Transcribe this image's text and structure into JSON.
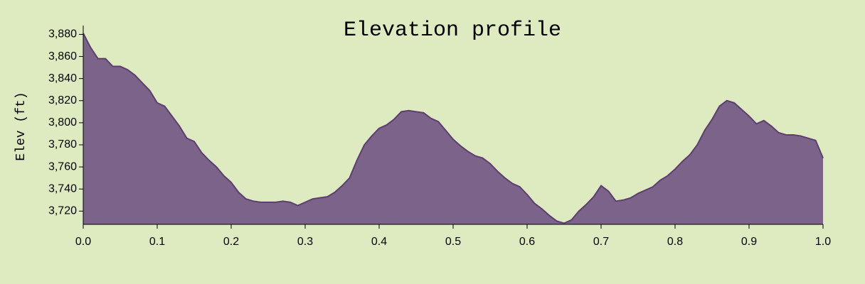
{
  "chart_data": {
    "type": "area",
    "title": "Elevation profile",
    "y_label": "Elev (ft)",
    "fill_color": "#7b6389",
    "line_color": "#5c3f70",
    "x": [
      0.0,
      0.01,
      0.02,
      0.03,
      0.04,
      0.05,
      0.06,
      0.07,
      0.08,
      0.09,
      0.1,
      0.11,
      0.12,
      0.13,
      0.14,
      0.15,
      0.16,
      0.17,
      0.18,
      0.19,
      0.2,
      0.21,
      0.22,
      0.23,
      0.24,
      0.25,
      0.26,
      0.27,
      0.28,
      0.29,
      0.3,
      0.31,
      0.32,
      0.33,
      0.34,
      0.35,
      0.36,
      0.37,
      0.38,
      0.39,
      0.4,
      0.41,
      0.42,
      0.43,
      0.44,
      0.45,
      0.46,
      0.47,
      0.48,
      0.49,
      0.5,
      0.51,
      0.52,
      0.53,
      0.54,
      0.55,
      0.56,
      0.57,
      0.58,
      0.59,
      0.6,
      0.61,
      0.62,
      0.63,
      0.64,
      0.65,
      0.66,
      0.67,
      0.68,
      0.69,
      0.7,
      0.71,
      0.72,
      0.73,
      0.74,
      0.75,
      0.76,
      0.77,
      0.78,
      0.79,
      0.8,
      0.81,
      0.82,
      0.83,
      0.84,
      0.85,
      0.86,
      0.87,
      0.88,
      0.89,
      0.9,
      0.91,
      0.92,
      0.93,
      0.94,
      0.95,
      0.96,
      0.97,
      0.98,
      0.99,
      1.0
    ],
    "values": [
      3881,
      3868,
      3858,
      3858,
      3851,
      3851,
      3848,
      3843,
      3836,
      3829,
      3818,
      3815,
      3806,
      3797,
      3786,
      3783,
      3773,
      3766,
      3760,
      3752,
      3746,
      3737,
      3731,
      3729,
      3728,
      3728,
      3728,
      3729,
      3728,
      3725,
      3728,
      3731,
      3732,
      3733,
      3737,
      3743,
      3750,
      3766,
      3780,
      3788,
      3795,
      3798,
      3803,
      3810,
      3811,
      3810,
      3809,
      3804,
      3801,
      3793,
      3785,
      3779,
      3774,
      3770,
      3768,
      3763,
      3756,
      3750,
      3745,
      3742,
      3735,
      3727,
      3722,
      3716,
      3711,
      3709,
      3712,
      3720,
      3726,
      3733,
      3743,
      3738,
      3729,
      3730,
      3732,
      3736,
      3739,
      3742,
      3748,
      3752,
      3758,
      3765,
      3771,
      3780,
      3793,
      3803,
      3815,
      3820,
      3818,
      3812,
      3806,
      3799,
      3802,
      3797,
      3791,
      3789,
      3789,
      3788,
      3786,
      3784,
      3768
    ],
    "xlim": [
      0,
      1
    ],
    "ylim": [
      3708,
      3888
    ],
    "xticks": [
      {
        "value": 0,
        "label": "0.0"
      },
      0.1,
      0.2,
      0.3,
      0.4,
      0.5,
      0.6,
      0.7,
      0.8,
      0.9,
      {
        "value": 1,
        "label": "1.0"
      }
    ],
    "yticks": [
      {
        "value": 3720,
        "label": "3,720"
      },
      {
        "value": 3740,
        "label": "3,740"
      },
      {
        "value": 3760,
        "label": "3,760"
      },
      {
        "value": 3780,
        "label": "3,780"
      },
      {
        "value": 3800,
        "label": "3,800"
      },
      {
        "value": 3820,
        "label": "3,820"
      },
      {
        "value": 3840,
        "label": "3,840"
      },
      {
        "value": 3860,
        "label": "3,860"
      },
      {
        "value": 3880,
        "label": "3,880"
      }
    ]
  }
}
